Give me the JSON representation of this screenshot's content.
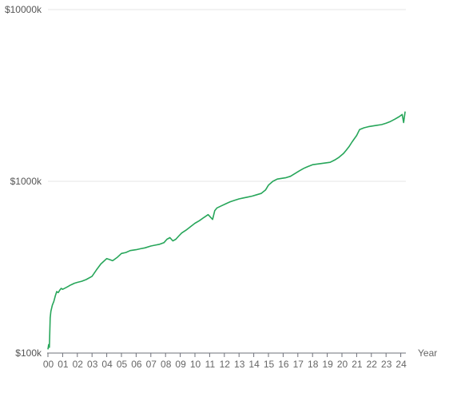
{
  "chart_data": {
    "type": "line",
    "title": "",
    "xlabel": "Year",
    "ylabel": "",
    "yscale": "log",
    "ylim": [
      100,
      10000
    ],
    "y_tick_values": [
      100,
      1000,
      10000
    ],
    "y_tick_labels": [
      "$100k",
      "$1000k",
      "$10000k"
    ],
    "x_tick_labels": [
      "00",
      "01",
      "02",
      "03",
      "04",
      "05",
      "06",
      "07",
      "08",
      "09",
      "10",
      "11",
      "12",
      "13",
      "14",
      "15",
      "16",
      "17",
      "18",
      "19",
      "20",
      "21",
      "22",
      "23",
      "24"
    ],
    "grid": "horizontal",
    "line_color": "#27a65a",
    "series": [
      {
        "x": [
          2000.0,
          2000.05,
          2000.1,
          2000.15,
          2000.2,
          2000.3,
          2000.4,
          2000.5,
          2000.6,
          2000.7,
          2000.8,
          2000.9,
          2001.0,
          2001.2,
          2001.4,
          2001.5,
          2001.6,
          2001.8,
          2002.0,
          2002.3,
          2002.6,
          2003.0,
          2003.3,
          2003.6,
          2004.0,
          2004.2,
          2004.4,
          2004.7,
          2005.0,
          2005.3,
          2005.6,
          2006.0,
          2006.3,
          2006.6,
          2007.0,
          2007.3,
          2007.6,
          2007.9,
          2008.1,
          2008.3,
          2008.5,
          2008.7,
          2008.9,
          2009.1,
          2009.4,
          2009.7,
          2010.0,
          2010.3,
          2010.6,
          2010.9,
          2011.2,
          2011.35,
          2011.5,
          2011.8,
          2012.1,
          2012.4,
          2012.7,
          2013.0,
          2013.3,
          2013.6,
          2013.9,
          2014.2,
          2014.5,
          2014.8,
          2015.0,
          2015.3,
          2015.6,
          2015.9,
          2016.2,
          2016.5,
          2016.8,
          2017.1,
          2017.4,
          2017.7,
          2018.0,
          2018.3,
          2018.6,
          2018.9,
          2019.2,
          2019.5,
          2019.8,
          2020.1,
          2020.3,
          2020.5,
          2020.7,
          2021.0,
          2021.2,
          2021.5,
          2021.8,
          2022.1,
          2022.4,
          2022.7,
          2023.0,
          2023.3,
          2023.6,
          2023.9,
          2024.1,
          2024.2,
          2024.3
        ],
        "y": [
          105,
          112,
          108,
          160,
          175,
          190,
          200,
          215,
          228,
          225,
          232,
          238,
          235,
          240,
          245,
          248,
          250,
          255,
          258,
          262,
          268,
          280,
          305,
          330,
          355,
          350,
          345,
          360,
          380,
          385,
          395,
          400,
          405,
          410,
          420,
          425,
          430,
          440,
          460,
          470,
          450,
          460,
          480,
          500,
          520,
          545,
          570,
          590,
          615,
          640,
          600,
          675,
          700,
          720,
          740,
          760,
          775,
          790,
          800,
          810,
          820,
          835,
          850,
          890,
          950,
          1000,
          1030,
          1040,
          1050,
          1070,
          1110,
          1150,
          1190,
          1220,
          1250,
          1260,
          1270,
          1280,
          1290,
          1330,
          1380,
          1450,
          1520,
          1600,
          1700,
          1850,
          2000,
          2050,
          2080,
          2100,
          2120,
          2140,
          2180,
          2230,
          2300,
          2380,
          2450,
          2200,
          2550
        ]
      }
    ]
  }
}
